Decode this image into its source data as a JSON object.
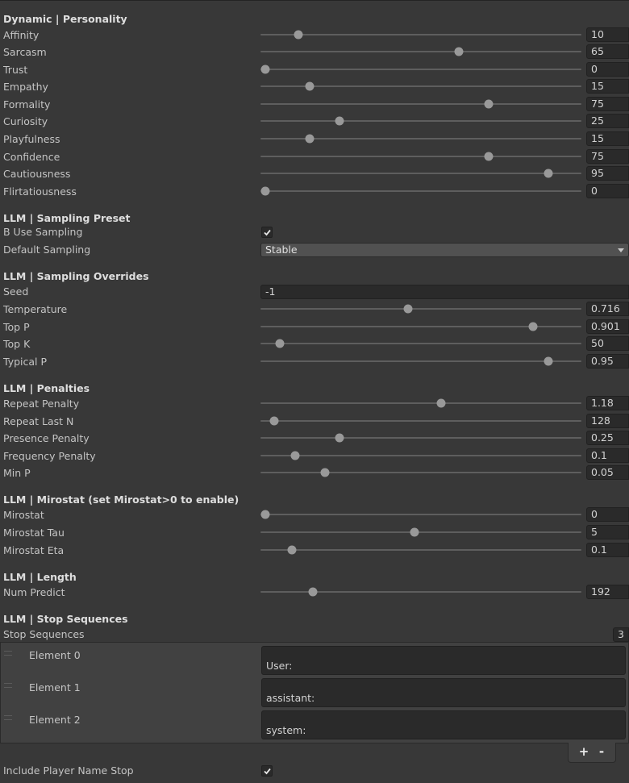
{
  "sections": {
    "personality": "Dynamic | Personality",
    "sampling_preset": "LLM | Sampling Preset",
    "sampling_overrides": "LLM | Sampling Overrides",
    "penalties": "LLM | Penalties",
    "mirostat": "LLM | Mirostat (set Mirostat>0 to enable)",
    "length": "LLM | Length",
    "stop_sequences": "LLM | Stop Sequences"
  },
  "personality": {
    "affinity": {
      "label": "Affinity",
      "value": "10",
      "fraction": 0.11
    },
    "sarcasm": {
      "label": "Sarcasm",
      "value": "65",
      "fraction": 0.65
    },
    "trust": {
      "label": "Trust",
      "value": "0",
      "fraction": 0.0
    },
    "empathy": {
      "label": "Empathy",
      "value": "15",
      "fraction": 0.15
    },
    "formality": {
      "label": "Formality",
      "value": "75",
      "fraction": 0.75
    },
    "curiosity": {
      "label": "Curiosity",
      "value": "25",
      "fraction": 0.25
    },
    "playfulness": {
      "label": "Playfulness",
      "value": "15",
      "fraction": 0.15
    },
    "confidence": {
      "label": "Confidence",
      "value": "75",
      "fraction": 0.75
    },
    "cautiousness": {
      "label": "Cautiousness",
      "value": "95",
      "fraction": 0.95
    },
    "flirtatiousness": {
      "label": "Flirtatiousness",
      "value": "0",
      "fraction": 0.0
    }
  },
  "sampling_preset": {
    "use_sampling": {
      "label": "B Use Sampling",
      "checked": true
    },
    "default_sampling": {
      "label": "Default Sampling",
      "value": "Stable"
    }
  },
  "sampling_overrides": {
    "seed": {
      "label": "Seed",
      "value": "-1"
    },
    "temperature": {
      "label": "Temperature",
      "value": "0.716",
      "fraction": 0.48
    },
    "top_p": {
      "label": "Top P",
      "value": "0.901",
      "fraction": 0.9
    },
    "top_k": {
      "label": "Top K",
      "value": "50",
      "fraction": 0.05
    },
    "typical_p": {
      "label": "Typical P",
      "value": "0.95",
      "fraction": 0.95
    }
  },
  "penalties": {
    "repeat_penalty": {
      "label": "Repeat Penalty",
      "value": "1.18",
      "fraction": 0.59
    },
    "repeat_last_n": {
      "label": "Repeat Last N",
      "value": "128",
      "fraction": 0.03
    },
    "presence_penalty": {
      "label": "Presence Penalty",
      "value": "0.25",
      "fraction": 0.25
    },
    "frequency_penalty": {
      "label": "Frequency Penalty",
      "value": "0.1",
      "fraction": 0.1
    },
    "min_p": {
      "label": "Min P",
      "value": "0.05",
      "fraction": 0.2
    }
  },
  "mirostat": {
    "mirostat": {
      "label": "Mirostat",
      "value": "0",
      "fraction": 0.0
    },
    "tau": {
      "label": "Mirostat Tau",
      "value": "5",
      "fraction": 0.5
    },
    "eta": {
      "label": "Mirostat Eta",
      "value": "0.1",
      "fraction": 0.09
    }
  },
  "length": {
    "num_predict": {
      "label": "Num Predict",
      "value": "192",
      "fraction": 0.16
    }
  },
  "stop_sequences": {
    "label": "Stop Sequences",
    "count": "3",
    "elements": [
      {
        "label": "Element 0",
        "value": "User:"
      },
      {
        "label": "Element 1",
        "value": "assistant:"
      },
      {
        "label": "Element 2",
        "value": "system:"
      }
    ],
    "add": "+",
    "remove": "-"
  },
  "include_player_name_stop": {
    "label": "Include Player Name Stop",
    "checked": true
  },
  "colors": {
    "background": "#383838",
    "field": "#2a2a2a",
    "knob": "#999999",
    "track": "#5e5e5e"
  }
}
